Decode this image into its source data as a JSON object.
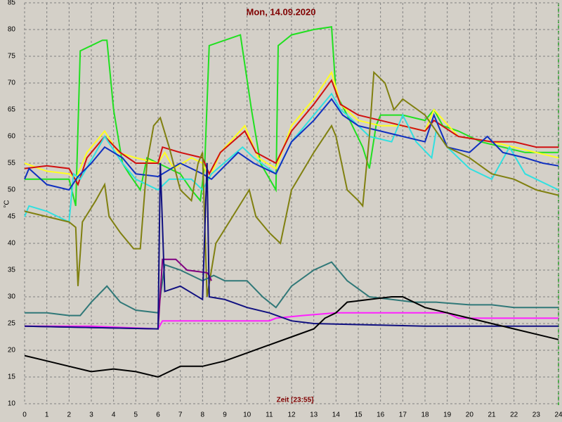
{
  "chart_data": {
    "type": "line",
    "title": "Mon, 14.09.2020",
    "x_label": "Zeit [23:55]",
    "y_label": "°C",
    "xlim": [
      0,
      24
    ],
    "xticks": [
      0,
      1,
      2,
      3,
      4,
      5,
      6,
      7,
      8,
      9,
      10,
      11,
      12,
      13,
      14,
      15,
      16,
      17,
      18,
      19,
      20,
      21,
      22,
      23,
      24
    ],
    "ylim": [
      10,
      85
    ],
    "yticks": [
      10,
      15,
      20,
      25,
      30,
      35,
      40,
      45,
      50,
      55,
      60,
      65,
      70,
      75,
      80,
      85
    ],
    "grid": true,
    "series": [
      {
        "color": "#20e020",
        "x": [
          0,
          2,
          2.3,
          2.5,
          3.5,
          3.7,
          4,
          4.4,
          4.7,
          5.2,
          5.5,
          6,
          6.5,
          7,
          7.5,
          7.9,
          8.1,
          8.3,
          9,
          9.7,
          10.2,
          10.6,
          11.3,
          11.4,
          12,
          13,
          13.8,
          14,
          14.5,
          15.2,
          15.5,
          15.8,
          16,
          17,
          18,
          18.4,
          18.8,
          19.5,
          20.5,
          21.5,
          22.5,
          24
        ],
        "values": [
          52,
          52,
          47,
          76,
          78,
          78,
          65,
          55,
          53,
          50,
          56,
          55,
          54,
          53,
          50,
          48,
          55,
          77,
          78,
          79,
          65,
          55,
          50,
          77,
          79,
          80,
          80.5,
          68,
          64,
          58,
          54,
          62,
          64,
          64,
          63,
          65,
          62,
          61,
          59,
          58,
          57,
          57
        ]
      },
      {
        "color": "#ffff20",
        "x": [
          0,
          1,
          2,
          2.3,
          2.8,
          3.6,
          4.2,
          5,
          6,
          6.3,
          6.7,
          7.5,
          8,
          8.3,
          8.8,
          9.9,
          10.5,
          11.3,
          12,
          13,
          13.8,
          14.2,
          15,
          16,
          17,
          18,
          18.4,
          19.5,
          21,
          22,
          23,
          24
        ],
        "values": [
          55,
          53.5,
          53,
          52,
          57,
          61,
          57,
          56,
          55,
          57,
          54,
          56,
          55,
          52,
          57,
          62,
          56,
          54,
          62,
          67,
          72,
          66,
          63,
          62,
          62,
          61,
          65,
          60,
          59,
          58,
          57,
          56
        ]
      },
      {
        "color": "#d01010",
        "x": [
          0,
          1,
          2,
          2.4,
          2.8,
          3.6,
          4.3,
          5,
          6,
          6.2,
          7,
          8,
          8.3,
          8.8,
          9.9,
          10.4,
          11.3,
          12,
          13,
          13.8,
          14.2,
          15,
          16,
          17,
          18,
          18.4,
          19.5,
          21,
          22,
          23,
          24
        ],
        "values": [
          54,
          54.5,
          54,
          51,
          56,
          60,
          57,
          55,
          55,
          58,
          57,
          56,
          53,
          57,
          61,
          57,
          55,
          61,
          66,
          70.5,
          66,
          64,
          63,
          62,
          61,
          63,
          60,
          59,
          59,
          58,
          58
        ]
      },
      {
        "color": "#30e0e0",
        "x": [
          0,
          0.2,
          1,
          2,
          2.2,
          2.5,
          3.2,
          3.6,
          4.4,
          5,
          6,
          6.5,
          7.5,
          8,
          8.4,
          9.8,
          10.3,
          11.3,
          12,
          13,
          13.8,
          14.2,
          14.5,
          15.5,
          16.5,
          17,
          17.6,
          18.3,
          18.5,
          19,
          20,
          21,
          21.8,
          22.5,
          23,
          24
        ],
        "values": [
          45,
          47,
          46,
          44,
          53,
          52,
          57,
          60,
          55,
          52,
          50,
          52,
          52,
          50,
          53,
          58,
          56,
          53,
          59,
          64,
          68,
          65,
          64,
          60,
          59,
          64,
          59,
          56,
          61,
          58,
          54,
          52,
          58,
          53,
          52,
          50
        ]
      },
      {
        "color": "#1030c0",
        "x": [
          0,
          0.2,
          1,
          2,
          2.4,
          3,
          3.6,
          4.4,
          5,
          6,
          7,
          8,
          8.4,
          9.6,
          10.3,
          11.3,
          12,
          13,
          13.8,
          14.3,
          15,
          16,
          17,
          18,
          18.4,
          19,
          20,
          20.8,
          21.5,
          22.5,
          23.3,
          24
        ],
        "values": [
          52,
          54,
          51,
          50,
          52.5,
          55,
          58,
          56,
          53,
          52.5,
          55,
          53,
          52,
          57,
          55,
          53,
          59,
          63,
          67,
          64,
          62,
          61,
          60,
          59,
          64,
          58,
          57,
          60,
          57,
          56,
          55,
          54.5
        ]
      },
      {
        "color": "#808010",
        "x": [
          0,
          1,
          2,
          2.3,
          2.4,
          2.6,
          3.2,
          3.6,
          3.8,
          4.3,
          4.9,
          5.2,
          5.5,
          5.8,
          6.1,
          6.5,
          7,
          7.5,
          7.8,
          8,
          8.2,
          8.6,
          9.5,
          10.1,
          10.4,
          11,
          11.5,
          12,
          13,
          13.8,
          14,
          14.5,
          15,
          15.2,
          15.5,
          15.7,
          16.2,
          16.6,
          17,
          18,
          19,
          20,
          21,
          22,
          23,
          24
        ],
        "values": [
          46,
          45,
          44,
          43,
          32,
          44,
          48,
          51,
          45,
          42,
          39,
          39,
          55,
          62,
          63.5,
          58,
          50,
          48,
          55,
          57,
          30,
          40,
          46,
          50,
          45,
          42,
          40,
          50,
          57,
          62,
          60,
          50,
          48,
          47,
          60,
          72,
          70,
          65,
          67,
          64,
          58,
          56,
          53,
          52,
          50,
          49
        ]
      },
      {
        "color": "#307878",
        "x": [
          0,
          1,
          2,
          2.5,
          3,
          3.7,
          4.3,
          5,
          6,
          6.3,
          7,
          8,
          8.5,
          9,
          10,
          10.7,
          11.3,
          12,
          13,
          13.8,
          14.5,
          15.5,
          16.5,
          17.5,
          18.5,
          20,
          21,
          22,
          24
        ],
        "values": [
          27,
          27,
          26.5,
          26.5,
          29,
          32,
          29,
          27.5,
          27,
          36,
          35,
          33,
          34,
          33,
          33,
          30,
          28,
          32,
          35,
          36.5,
          33,
          30,
          29.5,
          29,
          29,
          28.5,
          28.5,
          28,
          28
        ]
      },
      {
        "color": "#800080",
        "x": [
          0,
          6,
          6.2,
          6.8,
          7.3,
          8.2,
          8.3,
          8.4
        ],
        "values": [
          24.5,
          24,
          37,
          37,
          35,
          34.5,
          34,
          33
        ]
      },
      {
        "color": "#ff20ff",
        "x": [
          0,
          3,
          6,
          6.2,
          11,
          11.3,
          12.5,
          14,
          19,
          19.5,
          24
        ],
        "values": [
          24.5,
          24.5,
          24,
          25.5,
          25.5,
          26,
          26.5,
          27,
          27,
          26,
          26
        ]
      },
      {
        "color": "#101080",
        "x": [
          0,
          6,
          6.1,
          6.3,
          7,
          8,
          8.2,
          8.3,
          9,
          10,
          11,
          12,
          13,
          15,
          18,
          24
        ],
        "values": [
          24.5,
          24,
          55,
          31,
          32,
          29.5,
          55,
          30,
          29.5,
          28,
          27,
          25.5,
          25,
          24.8,
          24.5,
          24.5
        ]
      },
      {
        "color": "#000000",
        "x": [
          0,
          1,
          2,
          3,
          4,
          5,
          6,
          7,
          8,
          9,
          10,
          11,
          12,
          13,
          13.5,
          14,
          14.5,
          15.5,
          16.5,
          17,
          18,
          19,
          20,
          21,
          22,
          23,
          24
        ],
        "values": [
          19,
          18,
          17,
          16,
          16.5,
          16,
          15,
          17,
          17,
          18,
          19.5,
          21,
          22.5,
          24,
          26,
          27,
          29,
          29.5,
          30,
          30,
          28,
          27,
          26,
          25,
          24,
          23,
          22
        ]
      }
    ]
  }
}
